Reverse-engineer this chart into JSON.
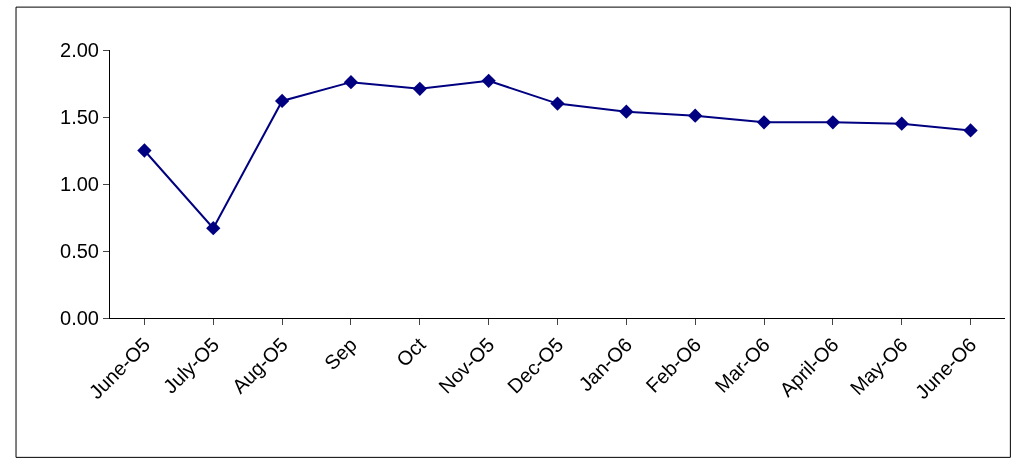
{
  "chart_data": {
    "type": "line",
    "categories": [
      "June-O5",
      "July-O5",
      "Aug-O5",
      "Sep",
      "Oct",
      "Nov-O5",
      "Dec-O5",
      "Jan-O6",
      "Feb-O6",
      "Mar-O6",
      "April-O6",
      "May-O6",
      "June-O6"
    ],
    "series": [
      {
        "color": "#000080",
        "values": [
          1.25,
          0.67,
          1.62,
          1.76,
          1.71,
          1.77,
          1.6,
          1.54,
          1.51,
          1.46,
          1.46,
          1.45,
          1.4
        ]
      }
    ],
    "ylim": [
      0,
      2
    ],
    "yticks": [
      {
        "value": 0,
        "label": "0.00"
      },
      {
        "value": 0.5,
        "label": "0.50"
      },
      {
        "value": 1,
        "label": "1.00"
      },
      {
        "value": 1.5,
        "label": "1.50"
      },
      {
        "value": 2,
        "label": "2.00"
      }
    ],
    "marker": "diamond",
    "line_style": "solid",
    "grid": false
  }
}
